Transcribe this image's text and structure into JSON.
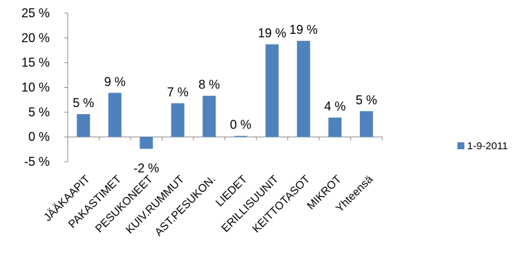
{
  "chart_data": {
    "type": "bar",
    "categories": [
      "JÄÄKAAPIT",
      "PAKASTIMET",
      "PESUKONEET",
      "KUIV.RUMMUT",
      "AST.PESUKON.",
      "LIEDET",
      "ERILLISUUNIT",
      "KEITTOTASOT",
      "MIKROT",
      "Yhteensä"
    ],
    "series": [
      {
        "name": "1-9-2011",
        "values": [
          4.6,
          8.9,
          -2.4,
          6.8,
          8.3,
          0.2,
          18.7,
          19.4,
          3.9,
          5.2
        ],
        "data_labels": [
          "5 %",
          "9 %",
          "-2 %",
          "7 %",
          "8 %",
          "0 %",
          "19 %",
          "19 %",
          "4 %",
          "5 %"
        ],
        "color": "#4f81bd"
      }
    ],
    "y_ticks": [
      25,
      20,
      15,
      10,
      5,
      0,
      -5
    ],
    "y_tick_labels": [
      "25 %",
      "20 %",
      "15 %",
      "10 %",
      "5 %",
      "0 %",
      "-5 %"
    ],
    "ylim": [
      -5,
      25
    ],
    "grid": false,
    "legend": "right"
  }
}
